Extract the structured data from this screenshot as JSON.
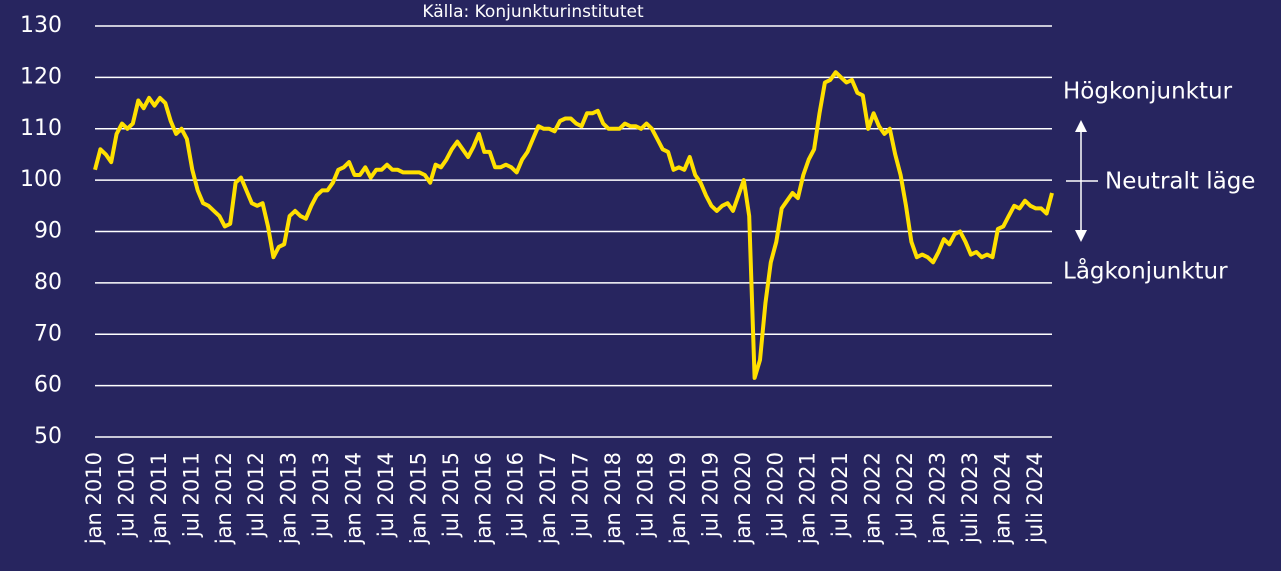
{
  "chart_data": {
    "type": "line",
    "subtitle": "Källa: Konjunkturinstitutet",
    "categories": [
      "jan 2010",
      null,
      null,
      null,
      null,
      null,
      "jul 2010",
      null,
      null,
      null,
      null,
      null,
      "jan 2011",
      null,
      null,
      null,
      null,
      null,
      "jul 2011",
      null,
      null,
      null,
      null,
      null,
      "jan 2012",
      null,
      null,
      null,
      null,
      null,
      "jul 2012",
      null,
      null,
      null,
      null,
      null,
      "jan 2013",
      null,
      null,
      null,
      null,
      null,
      "jul 2013",
      null,
      null,
      null,
      null,
      null,
      "jan 2014",
      null,
      null,
      null,
      null,
      null,
      "jul 2014",
      null,
      null,
      null,
      null,
      null,
      "jan 2015",
      null,
      null,
      null,
      null,
      null,
      "jul 2015",
      null,
      null,
      null,
      null,
      null,
      "jan 2016",
      null,
      null,
      null,
      null,
      null,
      "jul 2016",
      null,
      null,
      null,
      null,
      null,
      "jan 2017",
      null,
      null,
      null,
      null,
      null,
      "jul 2017",
      null,
      null,
      null,
      null,
      null,
      "jan 2018",
      null,
      null,
      null,
      null,
      null,
      "jul 2018",
      null,
      null,
      null,
      null,
      null,
      "jan 2019",
      null,
      null,
      null,
      null,
      null,
      "jul 2019",
      null,
      null,
      null,
      null,
      null,
      "jan 2020",
      null,
      null,
      null,
      null,
      null,
      "jul 2020",
      null,
      null,
      null,
      null,
      null,
      "jan 2021",
      null,
      null,
      null,
      null,
      null,
      "jul 2021",
      null,
      null,
      null,
      null,
      null,
      "jan 2022",
      null,
      null,
      null,
      null,
      null,
      "jul 2022",
      null,
      null,
      null,
      null,
      null,
      "jan 2023",
      null,
      null,
      null,
      null,
      null,
      "juli 2023",
      null,
      null,
      null,
      null,
      null,
      "jan 2024",
      null,
      null,
      null,
      null,
      null,
      "juli 2024",
      null,
      null,
      null
    ],
    "series": [
      {
        "color": "#ffe000",
        "values": [
          102,
          106,
          105,
          103.5,
          109,
          111,
          110,
          111,
          115.5,
          114,
          116,
          114.5,
          116,
          115,
          111.5,
          109,
          110,
          108,
          102,
          98,
          95.5,
          95,
          94,
          93,
          91,
          91.5,
          99.5,
          100.5,
          98,
          95.5,
          95,
          95.5,
          91,
          85,
          87,
          87.5,
          93,
          94,
          93,
          92.5,
          95,
          97,
          98,
          98,
          99.5,
          102,
          102.5,
          103.5,
          101,
          101,
          102.5,
          100.5,
          102,
          102,
          103,
          102,
          102,
          101.5,
          101.5,
          101.5,
          101.5,
          101,
          99.5,
          103,
          102.5,
          104,
          106,
          107.5,
          106,
          104.5,
          106.5,
          109,
          105.5,
          105.5,
          102.5,
          102.5,
          103,
          102.5,
          101.5,
          104,
          105.5,
          108,
          110.5,
          110,
          110,
          109.5,
          111.5,
          112,
          112,
          111,
          110.5,
          113,
          113,
          113.5,
          111,
          110,
          110,
          110,
          111,
          110.5,
          110.5,
          110,
          111,
          110,
          108,
          106,
          105.5,
          102,
          102.5,
          102,
          104.5,
          101,
          99.5,
          97,
          95,
          94,
          95,
          95.5,
          94,
          97,
          100,
          93,
          61.5,
          65,
          76,
          84,
          88,
          94.5,
          96,
          97.5,
          96.5,
          101,
          104,
          106,
          113,
          119,
          119.5,
          121,
          120,
          119,
          119.5,
          117,
          116.5,
          110,
          113,
          110.5,
          109,
          110,
          105,
          101,
          95,
          88,
          85,
          85.5,
          85,
          84,
          86,
          88.5,
          87.5,
          89.5,
          90,
          88,
          85.5,
          86,
          85,
          85.5,
          85,
          90.5,
          91,
          93,
          95,
          94.5,
          96,
          95,
          94.5,
          94.5,
          93.5,
          97.5
        ]
      }
    ],
    "ylim": [
      50,
      130
    ],
    "yticks": [
      50,
      60,
      70,
      80,
      90,
      100,
      110,
      120,
      130
    ],
    "grid": true,
    "annotations": [
      "Högkonjunktur",
      "Neutralt läge",
      "Lågkonjunktur"
    ]
  }
}
